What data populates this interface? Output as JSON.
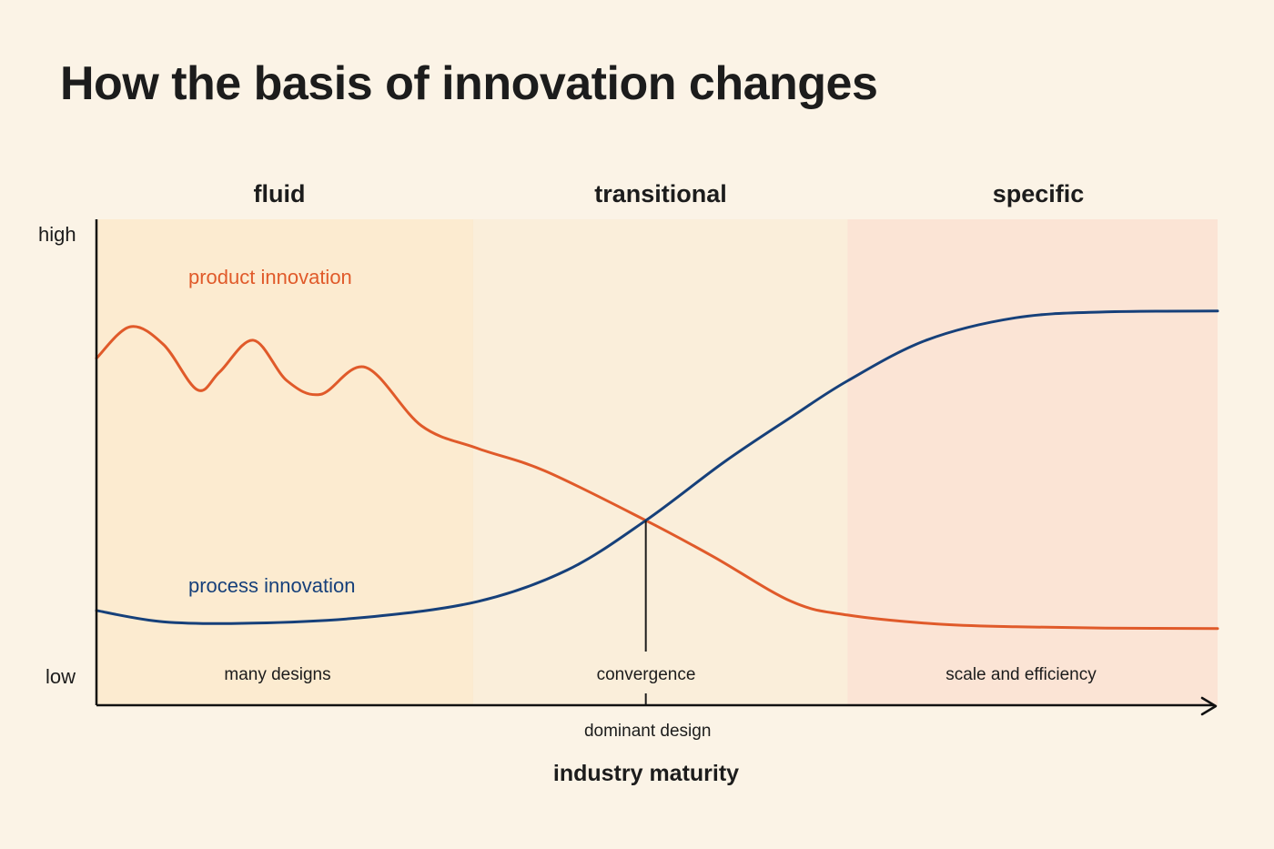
{
  "title": "How the basis of innovation changes",
  "chart_data": {
    "type": "line",
    "title": "How the basis of innovation changes",
    "xlabel": "industry maturity",
    "ylabel": "",
    "y_tick_labels": [
      "high",
      "low"
    ],
    "phases": [
      "fluid",
      "transitional",
      "specific"
    ],
    "phase_notes": [
      "many designs",
      "convergence",
      "scale and efficiency"
    ],
    "x_marker_label": "dominant design",
    "colors": {
      "product": "#e05a2a",
      "process": "#16407a",
      "phase_fluid": "#fbe9cb",
      "phase_transitional": "#f9ecd7",
      "phase_specific": "#fae1d1",
      "background": "#fbf3e6"
    },
    "series": [
      {
        "name": "product innovation",
        "x": [
          0,
          3,
          6,
          9,
          11,
          14,
          17,
          20,
          24,
          29,
          34,
          40,
          49,
          55,
          62,
          67,
          75,
          82,
          90,
          100
        ],
        "values": [
          0.75,
          0.82,
          0.78,
          0.68,
          0.72,
          0.79,
          0.7,
          0.67,
          0.73,
          0.6,
          0.55,
          0.5,
          0.39,
          0.31,
          0.21,
          0.18,
          0.16,
          0.154,
          0.151,
          0.15
        ]
      },
      {
        "name": "process innovation",
        "x": [
          0,
          6,
          14,
          24,
          34,
          42,
          49,
          56,
          62,
          67,
          74,
          82,
          90,
          100
        ],
        "values": [
          0.19,
          0.165,
          0.162,
          0.175,
          0.21,
          0.28,
          0.39,
          0.52,
          0.62,
          0.7,
          0.79,
          0.84,
          0.853,
          0.855
        ]
      }
    ],
    "dominant_design_x": 49,
    "phase_boundaries": [
      0,
      33.6,
      67,
      100
    ]
  }
}
